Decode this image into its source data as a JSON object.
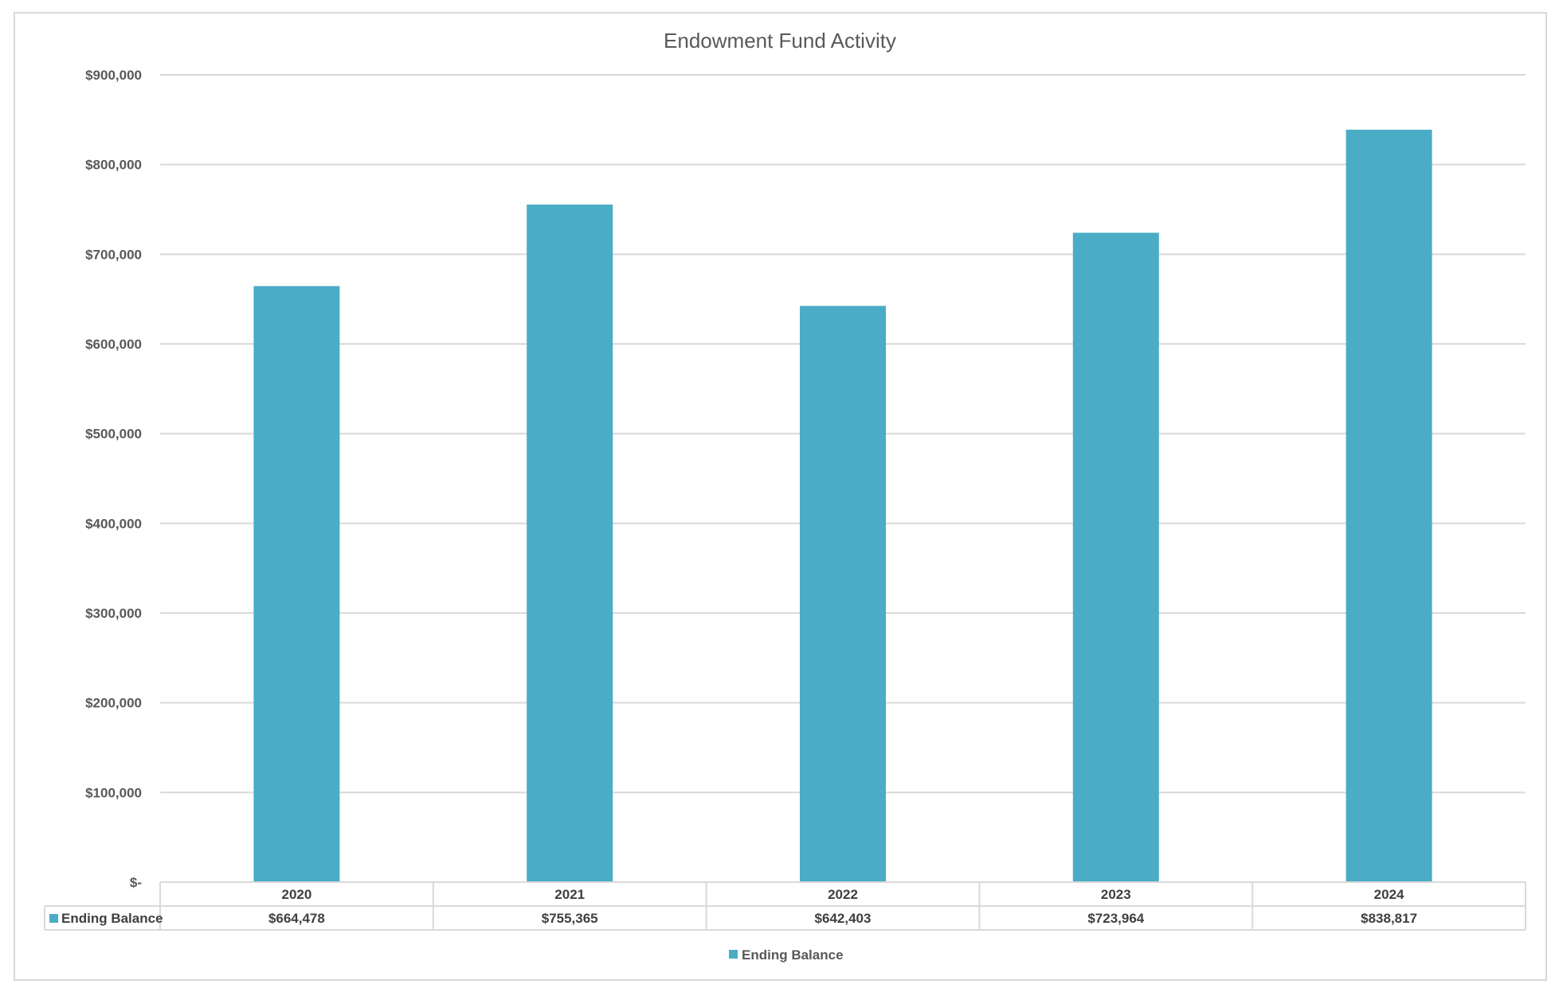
{
  "chart_data": {
    "type": "bar",
    "title": "Endowment Fund Activity",
    "categories": [
      "2020",
      "2021",
      "2022",
      "2023",
      "2024"
    ],
    "series": [
      {
        "name": "Ending Balance",
        "values": [
          664478,
          755365,
          642403,
          723964,
          838817
        ],
        "color": "#4BACC6"
      }
    ],
    "data_table": {
      "row_label": "Ending Balance",
      "cells": [
        "$664,478",
        "$755,365",
        "$642,403",
        "$723,964",
        "$838,817"
      ]
    },
    "y_ticks": [
      "$-",
      "$100,000",
      "$200,000",
      "$300,000",
      "$400,000",
      "$500,000",
      "$600,000",
      "$700,000",
      "$800,000",
      "$900,000"
    ],
    "ylim": [
      0,
      900000
    ],
    "xlabel": "",
    "ylabel": "",
    "grid": true,
    "legend": {
      "position": "bottom",
      "entries": [
        "Ending Balance"
      ]
    }
  }
}
